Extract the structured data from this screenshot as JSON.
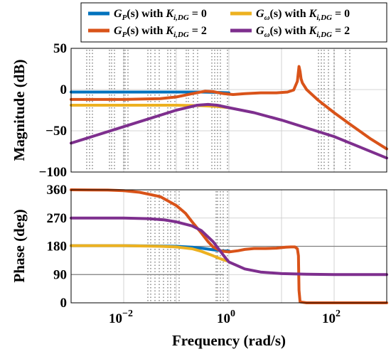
{
  "chart_data": [
    {
      "type": "line",
      "panel": "magnitude",
      "ylabel": "Magnitude (dB)",
      "xscale": "log",
      "xlim": [
        0.001,
        1000
      ],
      "ylim": [
        -100,
        50
      ],
      "yticks": [
        "50",
        "0",
        "−50",
        "−100"
      ],
      "ytick_values": [
        50,
        0,
        -50,
        -100
      ],
      "series": [
        {
          "key": "gp0",
          "color": "#0072bd",
          "x": [
            0.001,
            0.01,
            0.1,
            0.3,
            0.7,
            1
          ],
          "y": [
            -3,
            -3,
            -3,
            -3,
            -3.5,
            -4
          ]
        },
        {
          "key": "gw0",
          "color": "#edb120",
          "x": [
            0.001,
            0.01,
            0.1,
            0.3,
            0.6,
            1
          ],
          "y": [
            -19,
            -19,
            -19,
            -19.5,
            -20.5,
            -22
          ]
        },
        {
          "key": "gp2",
          "color": "#d95319",
          "x": [
            0.001,
            0.01,
            0.05,
            0.1,
            0.2,
            0.35,
            0.5,
            0.8,
            1.2,
            2,
            4,
            8,
            13,
            17,
            20,
            21.5,
            22.5,
            23.5,
            25,
            30,
            50,
            100,
            200,
            500,
            1000
          ],
          "y": [
            -12,
            -12,
            -11,
            -9,
            -5,
            -2,
            -2.5,
            -5,
            -6,
            -5,
            -4,
            -4,
            -3,
            -0.5,
            10,
            28,
            22,
            13,
            8,
            0,
            -13,
            -28,
            -42,
            -60,
            -72
          ]
        },
        {
          "key": "gw2",
          "color": "#7e2f8e",
          "x": [
            0.001,
            0.01,
            0.1,
            0.25,
            0.4,
            0.6,
            1,
            3,
            10,
            100,
            1000
          ],
          "y": [
            -65,
            -45,
            -25,
            -19,
            -18,
            -19,
            -22,
            -28,
            -37,
            -57,
            -83
          ]
        }
      ]
    },
    {
      "type": "line",
      "panel": "phase",
      "xlabel": "Frequency (rad/s)",
      "ylabel": "Phase (deg)",
      "xscale": "log",
      "xlim": [
        0.001,
        1000
      ],
      "ylim": [
        0,
        360
      ],
      "yticks": [
        "360",
        "270",
        "180",
        "90",
        "0"
      ],
      "ytick_values": [
        360,
        270,
        180,
        90,
        0
      ],
      "xticks": [
        {
          "value": 0.01,
          "base": "10",
          "exp": "−2"
        },
        {
          "value": 1,
          "base": "10",
          "exp": "0"
        },
        {
          "value": 100,
          "base": "10",
          "exp": "2"
        }
      ],
      "series": [
        {
          "key": "gp0",
          "color": "#0072bd",
          "x": [
            0.001,
            0.01,
            0.05,
            0.1,
            0.2,
            0.3,
            0.5,
            0.7,
            1
          ],
          "y": [
            182,
            182,
            181,
            180,
            177,
            174,
            169,
            166,
            165
          ]
        },
        {
          "key": "gw0",
          "color": "#edb120",
          "x": [
            0.001,
            0.01,
            0.05,
            0.1,
            0.2,
            0.3,
            0.5,
            0.7,
            0.9
          ],
          "y": [
            182,
            182,
            180,
            178,
            172,
            164,
            150,
            140,
            134
          ]
        },
        {
          "key": "gp2",
          "color": "#d95319",
          "x": [
            0.001,
            0.005,
            0.01,
            0.02,
            0.05,
            0.1,
            0.15,
            0.2,
            0.3,
            0.4,
            0.5,
            0.7,
            1,
            1.5,
            2,
            3,
            5,
            8,
            12,
            15,
            18,
            20,
            21,
            21.5,
            22.5,
            30,
            100,
            1000
          ],
          "y": [
            360,
            359,
            357,
            352,
            338,
            310,
            285,
            258,
            222,
            195,
            178,
            165,
            162,
            166,
            170,
            173,
            173,
            174,
            177,
            178,
            178,
            172,
            150,
            40,
            3,
            0,
            0,
            0
          ]
        },
        {
          "key": "gw2",
          "color": "#7e2f8e",
          "x": [
            0.001,
            0.01,
            0.03,
            0.06,
            0.1,
            0.2,
            0.3,
            0.5,
            0.8,
            1,
            2,
            4,
            10,
            30,
            100,
            1000
          ],
          "y": [
            270,
            270,
            268,
            264,
            258,
            245,
            230,
            195,
            150,
            130,
            108,
            98,
            93,
            91,
            90,
            90
          ]
        }
      ]
    }
  ],
  "legend": {
    "placement": "top",
    "entries": [
      {
        "key": "gp0",
        "color": "#0072bd",
        "g": "G",
        "gsub": "P",
        "mid": "(s) with ",
        "k": "K",
        "ksub": "i,DG",
        "val": " = 0"
      },
      {
        "key": "gw0",
        "color": "#edb120",
        "g": "G",
        "gsub": "ω",
        "mid": "(s) with ",
        "k": "K",
        "ksub": "i,DG",
        "val": " = 0"
      },
      {
        "key": "gp2",
        "color": "#d95319",
        "g": "G",
        "gsub": "P",
        "mid": "(s) with ",
        "k": "K",
        "ksub": "i,DG",
        "val": " = 2"
      },
      {
        "key": "gw2",
        "color": "#7e2f8e",
        "g": "G",
        "gsub": "ω",
        "mid": "(s) with ",
        "k": "K",
        "ksub": "i,DG",
        "val": " = 2"
      }
    ]
  }
}
